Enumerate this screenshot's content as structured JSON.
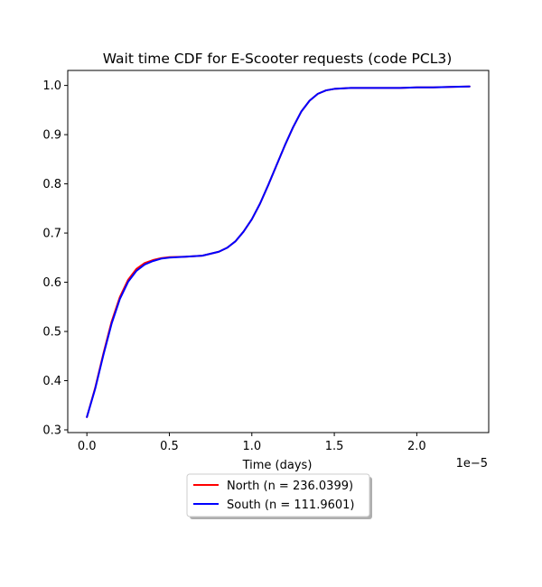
{
  "chart_data": {
    "type": "line",
    "title": "Wait time CDF for E-Scooter  requests (code PCL3)",
    "xlabel": "Time (days)",
    "ylabel": "",
    "x_offset_text": "1e−5",
    "xlim": [
      -0.116,
      2.436
    ],
    "ylim": [
      0.2945,
      1.0305
    ],
    "xticks": [
      0.0,
      0.5,
      1.0,
      1.5,
      2.0
    ],
    "xtick_labels": [
      "0.0",
      "0.5",
      "1.0",
      "1.5",
      "2.0"
    ],
    "yticks": [
      0.3,
      0.4,
      0.5,
      0.6,
      0.7,
      0.8,
      0.9,
      1.0
    ],
    "ytick_labels": [
      "0.3",
      "0.4",
      "0.5",
      "0.6",
      "0.7",
      "0.8",
      "0.9",
      "1.0"
    ],
    "grid": false,
    "legend_position": "below",
    "series": [
      {
        "name": "North (n = 236.0399)",
        "color": "#ff0000",
        "x": [
          0.0,
          0.05,
          0.1,
          0.15,
          0.2,
          0.25,
          0.3,
          0.35,
          0.4,
          0.45,
          0.5,
          0.6,
          0.7,
          0.8,
          0.85,
          0.9,
          0.95,
          1.0,
          1.05,
          1.1,
          1.15,
          1.2,
          1.25,
          1.3,
          1.35,
          1.4,
          1.45,
          1.5,
          1.55,
          1.6,
          1.7,
          1.8,
          1.9,
          2.0,
          2.1,
          2.2,
          2.32
        ],
        "y": [
          0.326,
          0.385,
          0.455,
          0.52,
          0.57,
          0.605,
          0.627,
          0.639,
          0.645,
          0.649,
          0.651,
          0.652,
          0.654,
          0.662,
          0.67,
          0.683,
          0.703,
          0.728,
          0.76,
          0.798,
          0.838,
          0.878,
          0.915,
          0.947,
          0.969,
          0.983,
          0.99,
          0.993,
          0.994,
          0.995,
          0.995,
          0.995,
          0.995,
          0.996,
          0.996,
          0.997,
          0.998
        ]
      },
      {
        "name": "South (n = 111.9601)",
        "color": "#0000ff",
        "x": [
          0.0,
          0.05,
          0.1,
          0.15,
          0.2,
          0.25,
          0.3,
          0.35,
          0.4,
          0.45,
          0.5,
          0.6,
          0.7,
          0.8,
          0.85,
          0.9,
          0.95,
          1.0,
          1.05,
          1.1,
          1.15,
          1.2,
          1.25,
          1.3,
          1.35,
          1.4,
          1.45,
          1.5,
          1.55,
          1.6,
          1.7,
          1.8,
          1.9,
          2.0,
          2.1,
          2.2,
          2.32
        ],
        "y": [
          0.326,
          0.383,
          0.452,
          0.516,
          0.566,
          0.601,
          0.623,
          0.636,
          0.643,
          0.648,
          0.65,
          0.652,
          0.654,
          0.662,
          0.67,
          0.683,
          0.703,
          0.728,
          0.76,
          0.798,
          0.838,
          0.878,
          0.915,
          0.947,
          0.969,
          0.983,
          0.99,
          0.993,
          0.994,
          0.995,
          0.995,
          0.995,
          0.995,
          0.996,
          0.996,
          0.997,
          0.998
        ]
      }
    ]
  }
}
